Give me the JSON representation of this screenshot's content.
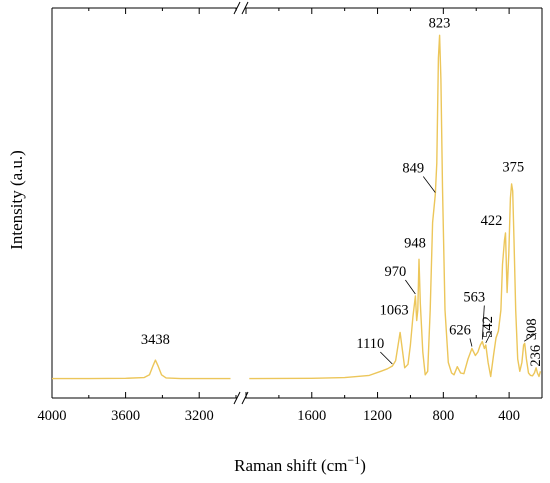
{
  "chart_data": {
    "type": "line",
    "xlabel": "Raman shift (cm",
    "xlabel_sup": "−1",
    "xlabel_tail": ")",
    "ylabel": "Intensity (a.u.)",
    "x_reversed": true,
    "x_axis_break": {
      "from": 3000,
      "to": 2000
    },
    "x_segments": [
      {
        "xlim": [
          4000,
          3000
        ],
        "ticks": [
          4000,
          3600,
          3200
        ]
      },
      {
        "xlim": [
          2000,
          200
        ],
        "ticks": [
          1600,
          1200,
          800,
          400
        ]
      }
    ],
    "tick_labels": [
      "4000",
      "3600",
      "3200",
      "1600",
      "1200",
      "800",
      "400"
    ],
    "ylim": [
      0,
      100
    ],
    "grid": false,
    "line_color": "#ECC65A",
    "series": [
      {
        "values": [
          [
            4000,
            0.4
          ],
          [
            3800,
            0.4
          ],
          [
            3600,
            0.5
          ],
          [
            3500,
            0.7
          ],
          [
            3470,
            1.5
          ],
          [
            3450,
            4.2
          ],
          [
            3438,
            5.7
          ],
          [
            3425,
            4.2
          ],
          [
            3405,
            1.5
          ],
          [
            3380,
            0.6
          ],
          [
            3300,
            0.4
          ],
          [
            3100,
            0.4
          ],
          [
            3030,
            0.4
          ],
          [
            1980,
            0.4
          ],
          [
            1600,
            0.5
          ],
          [
            1400,
            0.7
          ],
          [
            1250,
            1.3
          ],
          [
            1180,
            2.5
          ],
          [
            1140,
            3.2
          ],
          [
            1110,
            4.0
          ],
          [
            1090,
            5.5
          ],
          [
            1075,
            10
          ],
          [
            1063,
            13.6
          ],
          [
            1050,
            9
          ],
          [
            1035,
            3.5
          ],
          [
            1015,
            4.5
          ],
          [
            1000,
            10
          ],
          [
            985,
            18
          ],
          [
            970,
            24
          ],
          [
            962,
            17
          ],
          [
            955,
            20
          ],
          [
            948,
            34.5
          ],
          [
            940,
            22
          ],
          [
            925,
            8
          ],
          [
            910,
            1.5
          ],
          [
            895,
            2.5
          ],
          [
            880,
            20
          ],
          [
            865,
            45
          ],
          [
            849,
            53
          ],
          [
            840,
            62
          ],
          [
            830,
            92
          ],
          [
            823,
            98.5
          ],
          [
            815,
            86
          ],
          [
            805,
            55
          ],
          [
            790,
            20
          ],
          [
            770,
            5
          ],
          [
            750,
            2.0
          ],
          [
            735,
            1.5
          ],
          [
            715,
            3.8
          ],
          [
            695,
            2.0
          ],
          [
            675,
            1.8
          ],
          [
            650,
            6
          ],
          [
            626,
            9
          ],
          [
            605,
            7
          ],
          [
            590,
            8
          ],
          [
            575,
            10
          ],
          [
            563,
            11
          ],
          [
            550,
            9
          ],
          [
            542,
            10
          ],
          [
            528,
            5
          ],
          [
            512,
            1.0
          ],
          [
            495,
            7
          ],
          [
            480,
            12
          ],
          [
            465,
            14
          ],
          [
            450,
            20
          ],
          [
            440,
            33
          ],
          [
            428,
            40
          ],
          [
            422,
            42
          ],
          [
            412,
            25
          ],
          [
            402,
            36
          ],
          [
            392,
            52
          ],
          [
            385,
            56
          ],
          [
            378,
            54
          ],
          [
            370,
            40
          ],
          [
            360,
            20
          ],
          [
            348,
            6
          ],
          [
            335,
            2.5
          ],
          [
            322,
            5
          ],
          [
            312,
            10
          ],
          [
            305,
            10.5
          ],
          [
            295,
            6
          ],
          [
            282,
            2.0
          ],
          [
            270,
            1.3
          ],
          [
            258,
            1.2
          ],
          [
            246,
            2.0
          ],
          [
            236,
            3.5
          ],
          [
            228,
            2.0
          ],
          [
            218,
            1.0
          ],
          [
            210,
            2.5
          ]
        ]
      }
    ],
    "peak_labels": [
      {
        "x": 3438,
        "y": 5.7,
        "text": "3438"
      },
      {
        "x": 1110,
        "y": 4.0,
        "text": "1110"
      },
      {
        "x": 1063,
        "y": 13.6,
        "text": "1063"
      },
      {
        "x": 970,
        "y": 24,
        "text": "970"
      },
      {
        "x": 948,
        "y": 34.5,
        "text": "948"
      },
      {
        "x": 849,
        "y": 53,
        "text": "849"
      },
      {
        "x": 823,
        "y": 98.5,
        "text": "823"
      },
      {
        "x": 626,
        "y": 9,
        "text": "626"
      },
      {
        "x": 563,
        "y": 11,
        "text": "563"
      },
      {
        "x": 542,
        "y": 10,
        "text": "542"
      },
      {
        "x": 422,
        "y": 42,
        "text": "422"
      },
      {
        "x": 375,
        "y": 55,
        "text": "375"
      },
      {
        "x": 308,
        "y": 10.5,
        "text": "308"
      },
      {
        "x": 236,
        "y": 3.5,
        "text": "236"
      }
    ]
  }
}
